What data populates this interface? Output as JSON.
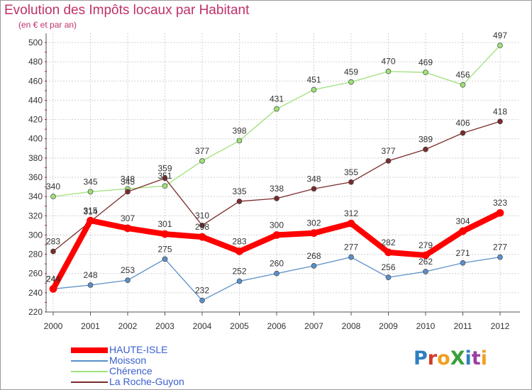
{
  "title": "Evolution des Impôts locaux par Habitant",
  "subtitle": "(en € et par an)",
  "logo": {
    "text": "ProXiti",
    "colors": [
      "#2e7fc0",
      "#d23a2a",
      "#f0a020",
      "#3aa03a",
      "#2e7fc0",
      "#9b3fa0",
      "#f0a020"
    ]
  },
  "chart_data": {
    "type": "line",
    "x": [
      "2000",
      "2001",
      "2002",
      "2003",
      "2004",
      "2005",
      "2006",
      "2007",
      "2008",
      "2009",
      "2010",
      "2011",
      "2012"
    ],
    "ylim": [
      220,
      500
    ],
    "yticks": [
      220,
      240,
      260,
      280,
      300,
      320,
      340,
      360,
      380,
      400,
      420,
      440,
      460,
      480,
      500
    ],
    "grid": true,
    "legend_position": "bottom-left",
    "series": [
      {
        "name": "HAUTE-ISLE",
        "color": "#ff0000",
        "width": 8,
        "values": [
          244,
          315,
          307,
          301,
          298,
          283,
          300,
          302,
          312,
          282,
          279,
          304,
          323
        ]
      },
      {
        "name": "Moisson",
        "color": "#5b8fc8",
        "width": 1.3,
        "values": [
          244,
          248,
          253,
          275,
          232,
          252,
          260,
          268,
          277,
          256,
          262,
          271,
          277
        ]
      },
      {
        "name": "Chérence",
        "color": "#9ee07a",
        "width": 1.3,
        "values": [
          340,
          345,
          348,
          351,
          377,
          398,
          431,
          451,
          459,
          470,
          469,
          456,
          497
        ]
      },
      {
        "name": "La Roche-Guyon",
        "color": "#7a2b2b",
        "width": 1.3,
        "values": [
          283,
          314,
          345,
          359,
          310,
          335,
          338,
          348,
          355,
          377,
          389,
          406,
          418
        ]
      }
    ]
  }
}
